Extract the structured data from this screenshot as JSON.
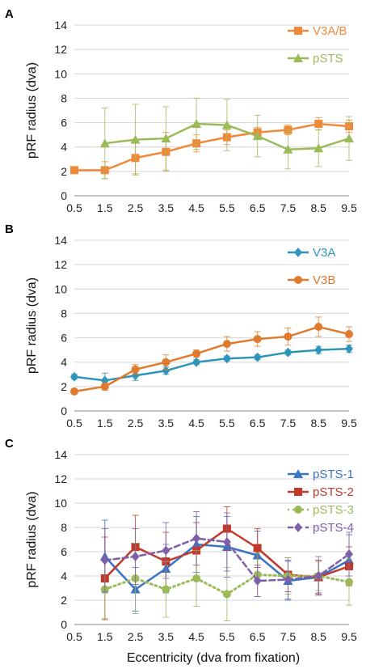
{
  "figure": {
    "xlabel": "Eccentricity (dva from fixation)"
  },
  "chart_data": [
    {
      "panel": "A",
      "type": "line",
      "title": "",
      "xlabel": "",
      "ylabel": "pRF radius (dva)",
      "x_ticks": [
        "0.5",
        "1.5",
        "2.5",
        "3.5",
        "4.5",
        "5.5",
        "6.5",
        "7.5",
        "8.5",
        "9.5"
      ],
      "y_ticks": [
        "0",
        "2",
        "4",
        "6",
        "8",
        "10",
        "12",
        "14"
      ],
      "xlim": [
        0.5,
        9.5
      ],
      "ylim": [
        0,
        14
      ],
      "grid": "horizontal",
      "legend_position": "top-right",
      "series": [
        {
          "name": "V3A/B",
          "color": "#f08a3a",
          "marker": "square",
          "dash": "solid",
          "x": [
            0.5,
            1.5,
            2.5,
            3.5,
            4.5,
            5.5,
            6.5,
            7.5,
            8.5,
            9.5
          ],
          "values": [
            2.1,
            2.1,
            3.1,
            3.6,
            4.3,
            4.8,
            5.2,
            5.4,
            5.9,
            5.7
          ],
          "errors": [
            0.2,
            0.7,
            1.3,
            1.6,
            0.7,
            0.6,
            0.4,
            0.4,
            0.5,
            0.5
          ]
        },
        {
          "name": "pSTS",
          "color": "#9bbb59",
          "marker": "triangle",
          "dash": "solid",
          "x": [
            1.5,
            2.5,
            3.5,
            4.5,
            5.5,
            6.5,
            7.5,
            8.5,
            9.5
          ],
          "values": [
            4.3,
            4.6,
            4.7,
            5.9,
            5.8,
            4.9,
            3.8,
            3.9,
            4.7
          ],
          "errors": [
            2.9,
            2.9,
            2.6,
            2.1,
            2.1,
            1.7,
            1.6,
            1.5,
            1.8
          ]
        }
      ]
    },
    {
      "panel": "B",
      "type": "line",
      "title": "",
      "xlabel": "",
      "ylabel": "pRF radius (dva)",
      "x_ticks": [
        "0.5",
        "1.5",
        "2.5",
        "3.5",
        "4.5",
        "5.5",
        "6.5",
        "7.5",
        "8.5",
        "9.5"
      ],
      "y_ticks": [
        "0",
        "2",
        "4",
        "6",
        "8",
        "10",
        "12",
        "14"
      ],
      "xlim": [
        0.5,
        9.5
      ],
      "ylim": [
        0,
        14
      ],
      "grid": "horizontal",
      "legend_position": "top-right",
      "series": [
        {
          "name": "V3A",
          "color": "#2e94b9",
          "marker": "diamond",
          "dash": "solid",
          "x": [
            0.5,
            1.5,
            2.5,
            3.5,
            4.5,
            5.5,
            6.5,
            7.5,
            8.5,
            9.5
          ],
          "values": [
            2.8,
            2.5,
            2.9,
            3.3,
            4.0,
            4.3,
            4.4,
            4.8,
            5.0,
            5.1
          ],
          "errors": [
            0.2,
            0.6,
            0.4,
            0.3,
            0.2,
            0.2,
            0.2,
            0.2,
            0.3,
            0.3
          ]
        },
        {
          "name": "V3B",
          "color": "#e07b2e",
          "marker": "circle",
          "dash": "solid",
          "x": [
            0.5,
            1.5,
            2.5,
            3.5,
            4.5,
            5.5,
            6.5,
            7.5,
            8.5,
            9.5
          ],
          "values": [
            1.6,
            2.0,
            3.4,
            4.0,
            4.7,
            5.5,
            5.9,
            6.1,
            6.9,
            6.3
          ],
          "errors": [
            0.2,
            0.3,
            0.4,
            0.6,
            0.3,
            0.6,
            0.6,
            0.7,
            0.8,
            0.6
          ]
        }
      ]
    },
    {
      "panel": "C",
      "type": "line",
      "title": "",
      "xlabel": "Eccentricity (dva from fixation)",
      "ylabel": "pRF radius (dva)",
      "x_ticks": [
        "0.5",
        "1.5",
        "2.5",
        "3.5",
        "4.5",
        "5.5",
        "6.5",
        "7.5",
        "8.5",
        "9.5"
      ],
      "y_ticks": [
        "0",
        "2",
        "4",
        "6",
        "8",
        "10",
        "12",
        "14"
      ],
      "xlim": [
        0.5,
        9.5
      ],
      "ylim": [
        0,
        14
      ],
      "grid": "horizontal",
      "legend_position": "top-right",
      "series": [
        {
          "name": "pSTS-1",
          "color": "#3a74c4",
          "marker": "triangle",
          "dash": "solid",
          "x": [
            1.5,
            2.5,
            3.5,
            4.5,
            5.5,
            6.5,
            7.5,
            8.5,
            9.5
          ],
          "values": [
            5.6,
            2.9,
            4.6,
            6.6,
            6.4,
            5.7,
            3.6,
            3.9,
            5.3
          ],
          "errors": [
            3.0,
            1.8,
            2.0,
            2.3,
            2.5,
            2.0,
            1.6,
            1.3,
            2.1
          ]
        },
        {
          "name": "pSTS-2",
          "color": "#c0392b",
          "marker": "square",
          "dash": "solid",
          "x": [
            1.5,
            2.5,
            3.5,
            4.5,
            5.5,
            6.5,
            7.5,
            8.5,
            9.5
          ],
          "values": [
            3.8,
            6.4,
            5.2,
            6.1,
            7.9,
            6.3,
            4.1,
            3.9,
            4.8
          ],
          "errors": [
            3.4,
            2.6,
            2.4,
            2.3,
            1.8,
            1.6,
            1.4,
            1.4,
            1.6
          ]
        },
        {
          "name": "pSTS-3",
          "color": "#9bbb59",
          "marker": "circle",
          "dash": "dotted",
          "x": [
            1.5,
            2.5,
            3.5,
            4.5,
            5.5,
            6.5,
            7.5,
            8.5,
            9.5
          ],
          "values": [
            2.9,
            3.8,
            2.9,
            3.8,
            2.5,
            4.1,
            4.0,
            4.0,
            3.5
          ],
          "errors": [
            2.4,
            2.9,
            2.3,
            2.3,
            2.2,
            1.8,
            1.5,
            1.2,
            1.9
          ]
        },
        {
          "name": "pSTS-4",
          "color": "#7f5fa8",
          "marker": "diamond",
          "dash": "dashed",
          "x": [
            1.5,
            2.5,
            3.5,
            4.5,
            5.5,
            6.5,
            7.5,
            8.5,
            9.5
          ],
          "values": [
            5.3,
            5.6,
            6.1,
            7.1,
            6.8,
            3.6,
            3.7,
            4.0,
            5.8
          ],
          "errors": [
            2.6,
            2.3,
            2.3,
            2.2,
            2.4,
            1.3,
            1.6,
            1.6,
            1.8
          ]
        }
      ]
    }
  ]
}
